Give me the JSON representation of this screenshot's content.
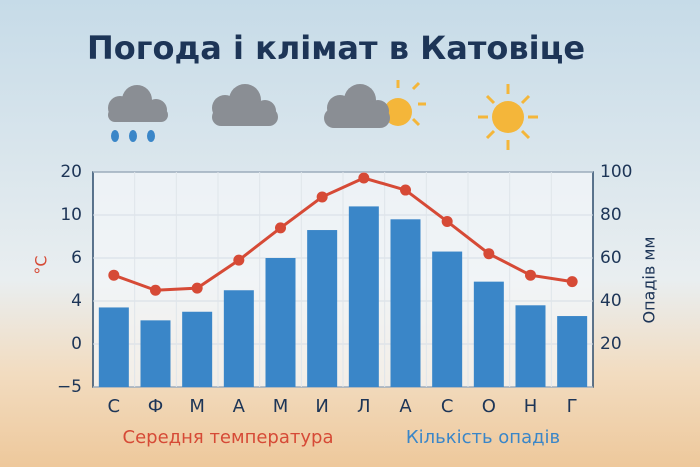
{
  "chart_data": {
    "type": "bar",
    "title": "Погода і клімат в Катовіце",
    "categories": [
      "С",
      "Ф",
      "М",
      "А",
      "М",
      "И",
      "Л",
      "А",
      "С",
      "О",
      "Н",
      "Г"
    ],
    "series": [
      {
        "name": "Середня температура",
        "color": "#d64a36",
        "type": "line",
        "axis": "y",
        "values": [
          5.2,
          4.5,
          4.6,
          5.9,
          8.8,
          14.2,
          18.6,
          15.8,
          9.4,
          6.4,
          5.2,
          4.9
        ]
      },
      {
        "name": "Кількість опадів",
        "color": "#3a86c8",
        "type": "bar",
        "axis": "y2",
        "values": [
          37,
          31,
          35,
          45,
          60,
          73,
          84,
          78,
          63,
          49,
          38,
          33
        ]
      }
    ],
    "ylabel": "°C",
    "y2label": "Опадів мм",
    "ylim": [
      -5,
      20
    ],
    "yticks": [
      {
        "value": -5,
        "label": "−5"
      },
      0,
      4,
      6,
      10,
      20
    ],
    "y2lim": [
      0,
      100
    ],
    "y2ticks": [
      20,
      40,
      60,
      80,
      100
    ],
    "grid": true
  }
}
